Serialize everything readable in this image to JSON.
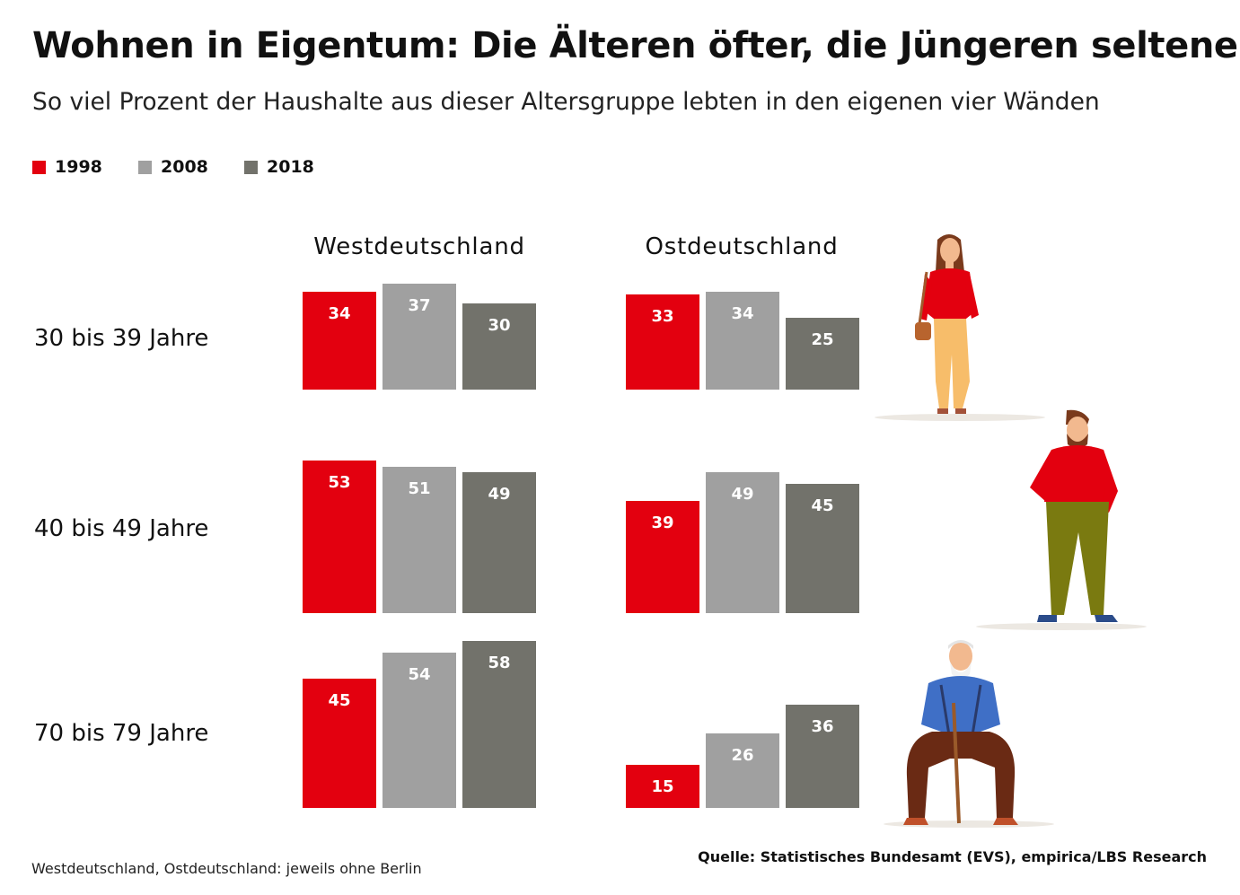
{
  "title": "Wohnen in Eigentum: Die Älteren öfter, die Jüngeren seltener",
  "subtitle": "So viel Prozent der Haushalte aus dieser Altersgruppe lebten in den eigenen vier Wänden",
  "footnote": "Westdeutschland, Ostdeutschland: jeweils ohne Berlin",
  "source": "Quelle: Statistisches Bundesamt (EVS), empirica/LBS Research",
  "colors": {
    "1998": "#e3000f",
    "2008": "#a0a0a0",
    "2018": "#72726b"
  },
  "chart_data": {
    "type": "bar",
    "title": "Wohnen in Eigentum: Die Älteren öfter, die Jüngeren seltener",
    "subtitle": "So viel Prozent der Haushalte aus dieser Altersgruppe lebten in den eigenen vier Wänden",
    "legend": [
      "1998",
      "2008",
      "2018"
    ],
    "legend_position": "top-left",
    "regions": [
      "Westdeutschland",
      "Ostdeutschland"
    ],
    "age_groups": [
      "30 bis 39 Jahre",
      "40 bis 49 Jahre",
      "70 bis 79 Jahre"
    ],
    "data": [
      {
        "age_group": "30 bis 39 Jahre",
        "Westdeutschland": [
          34,
          37,
          30
        ],
        "Ostdeutschland": [
          33,
          34,
          25
        ]
      },
      {
        "age_group": "40 bis 49 Jahre",
        "Westdeutschland": [
          53,
          51,
          49
        ],
        "Ostdeutschland": [
          39,
          49,
          45
        ]
      },
      {
        "age_group": "70 bis 79 Jahre",
        "Westdeutschland": [
          45,
          54,
          58
        ],
        "Ostdeutschland": [
          15,
          26,
          36
        ]
      }
    ],
    "ylim": [
      0,
      100
    ],
    "unit": "%",
    "grid": false
  },
  "illustrations": [
    "young-woman-illustration",
    "middle-aged-man-illustration",
    "elderly-man-with-cane-illustration"
  ]
}
